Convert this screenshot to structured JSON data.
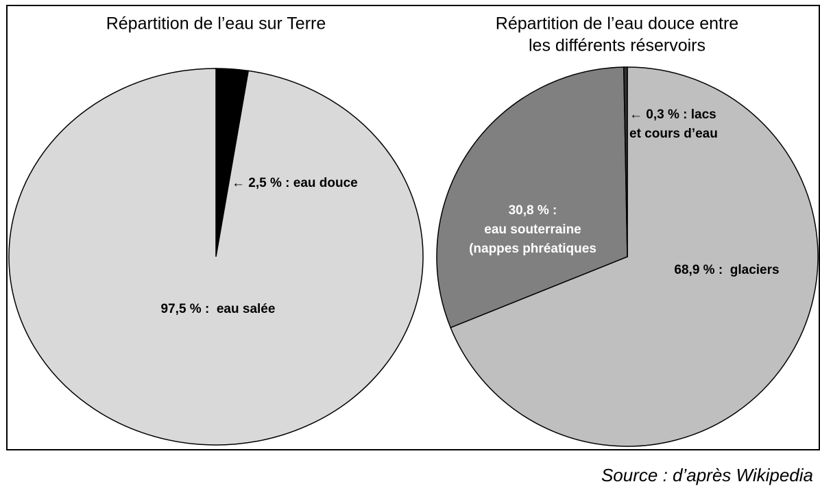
{
  "chart_data": [
    {
      "type": "pie",
      "title": [
        "Répartition de l’eau sur Terre"
      ],
      "values": [
        2.5,
        97.5
      ],
      "value_labels": [
        [
          "← 2,5 % : eau douce"
        ],
        [
          "97,5 % :  eau salée"
        ]
      ],
      "colors": [
        "#000000",
        "#d9d9d9"
      ]
    },
    {
      "type": "pie",
      "title": [
        "Répartition de l’eau douce entre",
        "les différents réservoirs"
      ],
      "values": [
        68.9,
        30.8,
        0.3
      ],
      "value_labels": [
        [
          "68,9 % :  glaciers"
        ],
        [
          "30,8 % :",
          "eau souterraine",
          "(nappes phréatiques"
        ],
        [
          "← 0,3 % : lacs",
          "et cours d’eau"
        ]
      ],
      "colors": [
        "#bfbfbf",
        "#808080",
        "#333333"
      ]
    }
  ],
  "source": "Source : d’après Wikipedia"
}
